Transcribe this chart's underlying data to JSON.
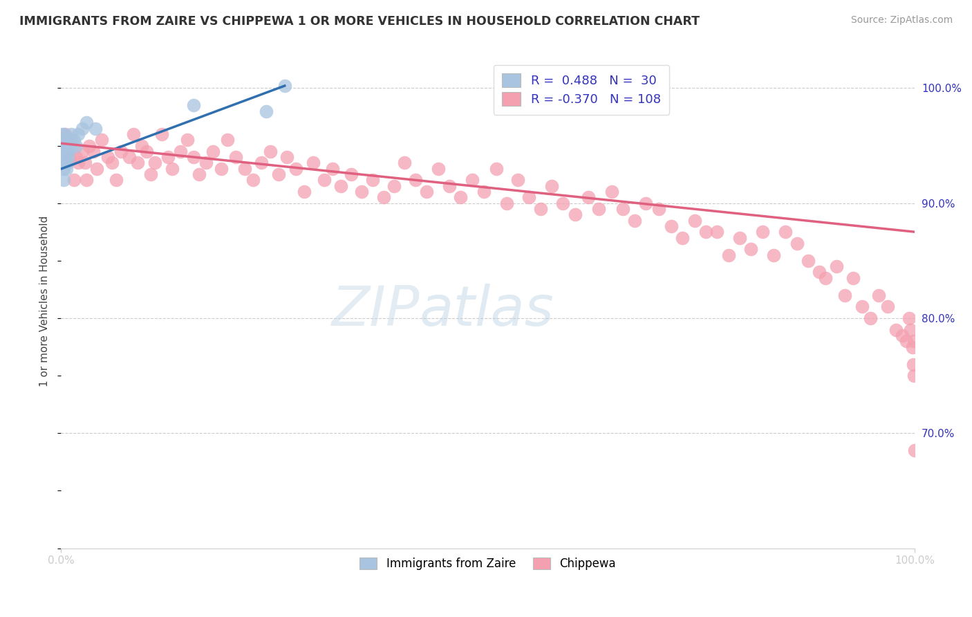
{
  "title": "IMMIGRANTS FROM ZAIRE VS CHIPPEWA 1 OR MORE VEHICLES IN HOUSEHOLD CORRELATION CHART",
  "source_text": "Source: ZipAtlas.com",
  "ylabel": "1 or more Vehicles in Household",
  "xlim": [
    0.0,
    1.0
  ],
  "ylim": [
    0.6,
    1.03
  ],
  "legend_labels": [
    "Immigrants from Zaire",
    "Chippewa"
  ],
  "r_zaire": 0.488,
  "n_zaire": 30,
  "r_chippewa": -0.37,
  "n_chippewa": 108,
  "watermark_zip": "ZIP",
  "watermark_atlas": "atlas",
  "blue_color": "#a8c4e0",
  "pink_color": "#f4a0b0",
  "blue_line_color": "#3070b0",
  "pink_line_color": "#e06080",
  "zaire_x": [
    0.001,
    0.001,
    0.002,
    0.002,
    0.003,
    0.003,
    0.003,
    0.004,
    0.004,
    0.004,
    0.005,
    0.005,
    0.006,
    0.006,
    0.007,
    0.007,
    0.008,
    0.009,
    0.01,
    0.011,
    0.012,
    0.015,
    0.018,
    0.02,
    0.025,
    0.03,
    0.04,
    0.155,
    0.24,
    0.262
  ],
  "zaire_y": [
    0.94,
    0.96,
    0.935,
    0.95,
    0.92,
    0.93,
    0.945,
    0.935,
    0.95,
    0.96,
    0.94,
    0.955,
    0.93,
    0.945,
    0.935,
    0.95,
    0.94,
    0.945,
    0.955,
    0.95,
    0.96,
    0.955,
    0.95,
    0.96,
    0.965,
    0.97,
    0.965,
    0.985,
    0.98,
    1.002
  ],
  "chippewa_x": [
    0.005,
    0.01,
    0.012,
    0.015,
    0.018,
    0.02,
    0.025,
    0.028,
    0.03,
    0.033,
    0.038,
    0.042,
    0.048,
    0.055,
    0.06,
    0.065,
    0.07,
    0.08,
    0.085,
    0.09,
    0.095,
    0.1,
    0.105,
    0.11,
    0.118,
    0.125,
    0.13,
    0.14,
    0.148,
    0.155,
    0.162,
    0.17,
    0.178,
    0.188,
    0.195,
    0.205,
    0.215,
    0.225,
    0.235,
    0.245,
    0.255,
    0.265,
    0.275,
    0.285,
    0.295,
    0.308,
    0.318,
    0.328,
    0.34,
    0.352,
    0.365,
    0.378,
    0.39,
    0.402,
    0.415,
    0.428,
    0.442,
    0.455,
    0.468,
    0.482,
    0.495,
    0.51,
    0.522,
    0.535,
    0.548,
    0.562,
    0.575,
    0.588,
    0.602,
    0.618,
    0.63,
    0.645,
    0.658,
    0.672,
    0.685,
    0.7,
    0.715,
    0.728,
    0.742,
    0.755,
    0.768,
    0.782,
    0.795,
    0.808,
    0.822,
    0.835,
    0.848,
    0.862,
    0.875,
    0.888,
    0.895,
    0.908,
    0.918,
    0.928,
    0.938,
    0.948,
    0.958,
    0.968,
    0.978,
    0.985,
    0.99,
    0.993,
    0.995,
    0.997,
    0.998,
    0.999,
    0.999,
    1.0
  ],
  "chippewa_y": [
    0.96,
    0.94,
    0.955,
    0.92,
    0.94,
    0.935,
    0.945,
    0.935,
    0.92,
    0.95,
    0.945,
    0.93,
    0.955,
    0.94,
    0.935,
    0.92,
    0.945,
    0.94,
    0.96,
    0.935,
    0.95,
    0.945,
    0.925,
    0.935,
    0.96,
    0.94,
    0.93,
    0.945,
    0.955,
    0.94,
    0.925,
    0.935,
    0.945,
    0.93,
    0.955,
    0.94,
    0.93,
    0.92,
    0.935,
    0.945,
    0.925,
    0.94,
    0.93,
    0.91,
    0.935,
    0.92,
    0.93,
    0.915,
    0.925,
    0.91,
    0.92,
    0.905,
    0.915,
    0.935,
    0.92,
    0.91,
    0.93,
    0.915,
    0.905,
    0.92,
    0.91,
    0.93,
    0.9,
    0.92,
    0.905,
    0.895,
    0.915,
    0.9,
    0.89,
    0.905,
    0.895,
    0.91,
    0.895,
    0.885,
    0.9,
    0.895,
    0.88,
    0.87,
    0.885,
    0.875,
    0.875,
    0.855,
    0.87,
    0.86,
    0.875,
    0.855,
    0.875,
    0.865,
    0.85,
    0.84,
    0.835,
    0.845,
    0.82,
    0.835,
    0.81,
    0.8,
    0.82,
    0.81,
    0.79,
    0.785,
    0.78,
    0.8,
    0.79,
    0.775,
    0.76,
    0.75,
    0.78,
    0.685
  ],
  "pink_line_x": [
    0.0,
    1.0
  ],
  "pink_line_y": [
    0.952,
    0.875
  ],
  "blue_line_x": [
    0.001,
    0.262
  ],
  "blue_line_y": [
    0.93,
    1.002
  ]
}
